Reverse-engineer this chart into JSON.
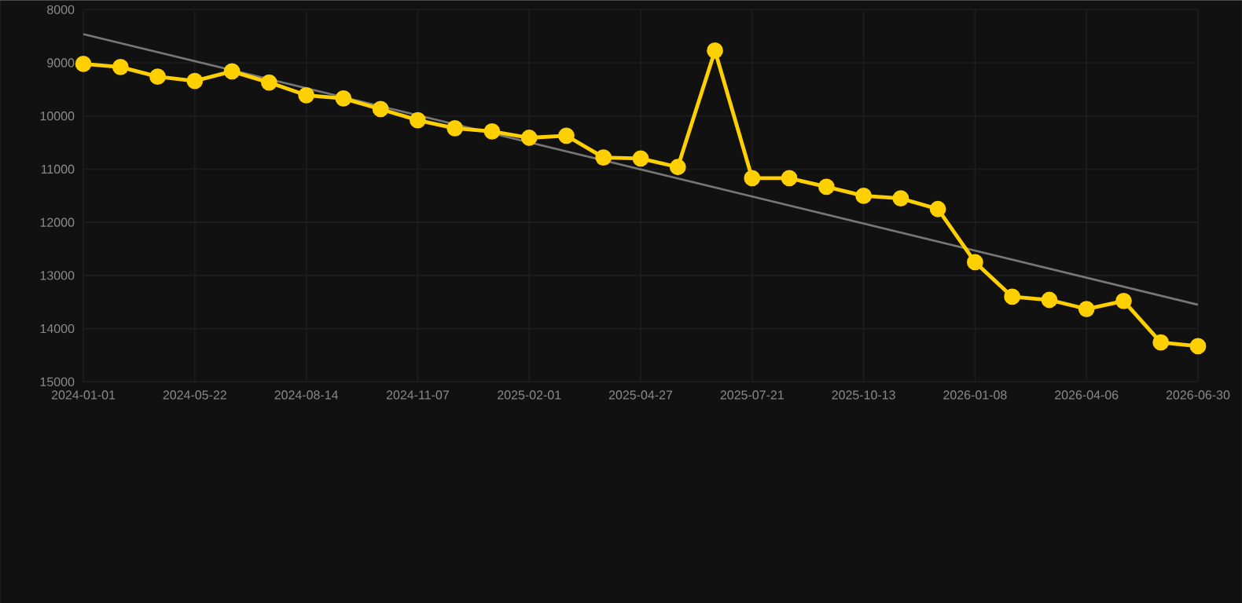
{
  "chart_data": {
    "type": "line",
    "categories": [
      "2024-01-01",
      null,
      null,
      "2024-05-22",
      null,
      null,
      "2024-08-14",
      null,
      null,
      "2024-11-07",
      null,
      null,
      "2025-02-01",
      null,
      null,
      "2025-04-27",
      null,
      null,
      "2025-07-21",
      null,
      null,
      "2025-10-13",
      null,
      null,
      "2026-01-08",
      null,
      null,
      "2026-04-06",
      null,
      null,
      "2026-06-30"
    ],
    "series": [
      {
        "color": "#ffd000",
        "marker": "circle",
        "values": [
          9020,
          9080,
          9260,
          9340,
          9160,
          9370,
          9610,
          9670,
          9870,
          10080,
          10230,
          10290,
          10410,
          10370,
          10780,
          10800,
          10960,
          8770,
          11170,
          11170,
          11330,
          11500,
          11550,
          11750,
          12750,
          13400,
          13460,
          13630,
          13480,
          14260,
          14330
        ]
      },
      {
        "type": "line",
        "color": "#777777",
        "marker": "none",
        "values": [
          8460,
          null,
          null,
          null,
          null,
          null,
          null,
          null,
          null,
          null,
          null,
          null,
          null,
          null,
          null,
          null,
          null,
          null,
          null,
          null,
          null,
          null,
          null,
          null,
          null,
          null,
          null,
          null,
          null,
          null,
          13550
        ]
      }
    ],
    "ylim": [
      15000,
      8000
    ],
    "yticks": [
      8000,
      9000,
      10000,
      11000,
      12000,
      13000,
      14000,
      15000
    ],
    "grid": true,
    "line_style": "solid"
  }
}
